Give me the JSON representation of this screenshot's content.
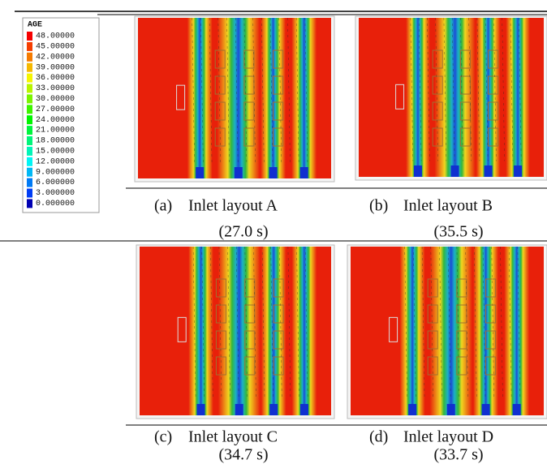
{
  "legend": {
    "title": "AGE",
    "labels": [
      "48.00000",
      "45.00000",
      "42.00000",
      "39.00000",
      "36.00000",
      "33.00000",
      "30.00000",
      "27.00000",
      "24.00000",
      "21.00000",
      "18.00000",
      "15.00000",
      "12.00000",
      "9.000000",
      "6.000000",
      "3.000000",
      "0.000000"
    ]
  },
  "panels": [
    {
      "label": "(a)",
      "caption": "Inlet layout A",
      "time": "(27.0 s)"
    },
    {
      "label": "(b)",
      "caption": "Inlet layout  B",
      "time": "(35.5 s)"
    },
    {
      "label": "(c)",
      "caption": "Inlet layout  C",
      "time": "(34.7 s)"
    },
    {
      "label": "(d)",
      "caption": "Inlet layout D",
      "time": "(33.7 s)"
    }
  ]
}
